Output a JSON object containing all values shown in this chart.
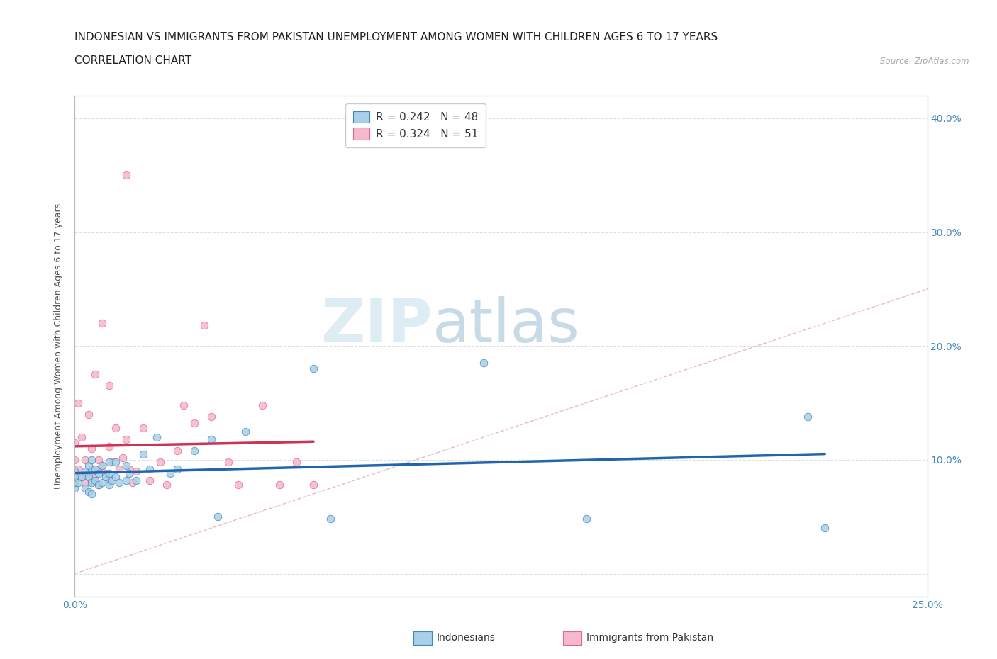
{
  "title_line1": "INDONESIAN VS IMMIGRANTS FROM PAKISTAN UNEMPLOYMENT AMONG WOMEN WITH CHILDREN AGES 6 TO 17 YEARS",
  "title_line2": "CORRELATION CHART",
  "source": "Source: ZipAtlas.com",
  "ylabel": "Unemployment Among Women with Children Ages 6 to 17 years",
  "xlim": [
    0.0,
    0.25
  ],
  "ylim": [
    -0.02,
    0.42
  ],
  "xticks": [
    0.0,
    0.05,
    0.1,
    0.15,
    0.2,
    0.25
  ],
  "xtick_labels": [
    "0.0%",
    "",
    "",
    "",
    "",
    "25.0%"
  ],
  "yticks": [
    0.0,
    0.1,
    0.2,
    0.3,
    0.4
  ],
  "ytick_labels_right": [
    "",
    "10.0%",
    "20.0%",
    "30.0%",
    "40.0%"
  ],
  "legend_blue_r": "0.242",
  "legend_blue_n": "48",
  "legend_pink_r": "0.324",
  "legend_pink_n": "51",
  "blue_dot_color": "#a8d0e8",
  "blue_dot_edge": "#4488bb",
  "pink_dot_color": "#f5b8cc",
  "pink_dot_edge": "#e06888",
  "blue_line_color": "#2166ac",
  "pink_line_color": "#cc3355",
  "diagonal_color": "#cccccc",
  "grid_color": "#dddddd",
  "axis_color": "#bbbbbb",
  "tick_color": "#4488bb",
  "indo_x": [
    0.0,
    0.0,
    0.0,
    0.0,
    0.001,
    0.002,
    0.003,
    0.003,
    0.004,
    0.004,
    0.004,
    0.005,
    0.005,
    0.005,
    0.005,
    0.006,
    0.006,
    0.007,
    0.007,
    0.008,
    0.008,
    0.009,
    0.01,
    0.01,
    0.01,
    0.011,
    0.012,
    0.012,
    0.013,
    0.015,
    0.015,
    0.016,
    0.018,
    0.02,
    0.022,
    0.024,
    0.028,
    0.03,
    0.035,
    0.04,
    0.042,
    0.05,
    0.07,
    0.075,
    0.12,
    0.15,
    0.215,
    0.22
  ],
  "indo_y": [
    0.075,
    0.08,
    0.085,
    0.09,
    0.08,
    0.085,
    0.075,
    0.09,
    0.072,
    0.085,
    0.095,
    0.07,
    0.08,
    0.09,
    0.1,
    0.082,
    0.092,
    0.078,
    0.088,
    0.08,
    0.095,
    0.085,
    0.078,
    0.088,
    0.098,
    0.082,
    0.085,
    0.098,
    0.08,
    0.082,
    0.095,
    0.088,
    0.082,
    0.105,
    0.092,
    0.12,
    0.088,
    0.092,
    0.108,
    0.118,
    0.05,
    0.125,
    0.18,
    0.048,
    0.185,
    0.048,
    0.138,
    0.04
  ],
  "pak_x": [
    0.0,
    0.0,
    0.0,
    0.0,
    0.0,
    0.001,
    0.001,
    0.002,
    0.002,
    0.003,
    0.003,
    0.004,
    0.004,
    0.005,
    0.005,
    0.005,
    0.006,
    0.006,
    0.007,
    0.007,
    0.007,
    0.008,
    0.008,
    0.009,
    0.01,
    0.01,
    0.01,
    0.011,
    0.012,
    0.013,
    0.014,
    0.015,
    0.015,
    0.016,
    0.017,
    0.018,
    0.02,
    0.022,
    0.025,
    0.027,
    0.03,
    0.032,
    0.035,
    0.038,
    0.04,
    0.045,
    0.048,
    0.055,
    0.06,
    0.065,
    0.07
  ],
  "pak_y": [
    0.082,
    0.09,
    0.1,
    0.115,
    0.08,
    0.15,
    0.092,
    0.085,
    0.12,
    0.08,
    0.1,
    0.088,
    0.14,
    0.092,
    0.11,
    0.082,
    0.085,
    0.175,
    0.078,
    0.092,
    0.1,
    0.095,
    0.22,
    0.088,
    0.112,
    0.082,
    0.165,
    0.098,
    0.128,
    0.092,
    0.102,
    0.118,
    0.35,
    0.092,
    0.08,
    0.09,
    0.128,
    0.082,
    0.098,
    0.078,
    0.108,
    0.148,
    0.132,
    0.218,
    0.138,
    0.098,
    0.078,
    0.148,
    0.078,
    0.098,
    0.078
  ]
}
